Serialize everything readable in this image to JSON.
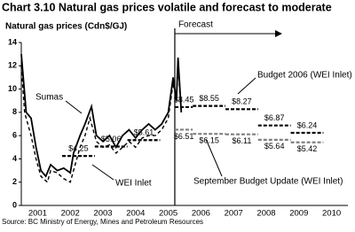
{
  "chart_data": {
    "type": "line",
    "title": "Chart 3.10 Natural gas prices volatile and forecast to moderate",
    "y_label": "Natural gas prices (Cdn$/GJ)",
    "forecast_label": "Forecast",
    "source": "Source:  BC Ministry of Energy, Mines and Petroleum Resources",
    "xlim": [
      2001,
      2011
    ],
    "xticks": [
      {
        "value": 2001.5,
        "label": "2001"
      },
      {
        "value": 2002.5,
        "label": "2002"
      },
      {
        "value": 2003.5,
        "label": "2003"
      },
      {
        "value": 2004.5,
        "label": "2004"
      },
      {
        "value": 2005.5,
        "label": "2005"
      },
      {
        "value": 2006.5,
        "label": "2006"
      },
      {
        "value": 2007.5,
        "label": "2007"
      },
      {
        "value": 2008.5,
        "label": "2008"
      },
      {
        "value": 2009.5,
        "label": "2009"
      },
      {
        "value": 2010.5,
        "label": "2010"
      }
    ],
    "ylim": [
      0,
      14
    ],
    "yticks": [
      0,
      2,
      4,
      6,
      8,
      10,
      12,
      14
    ],
    "series": [
      {
        "name": "Sumas",
        "color": "#000000",
        "style": "solid",
        "kind": "line",
        "x": [
          2001.0,
          2001.15,
          2001.3,
          2001.45,
          2001.6,
          2001.75,
          2001.9,
          2002.1,
          2002.3,
          2002.5,
          2002.6,
          2002.8,
          2002.95,
          2003.15,
          2003.3,
          2003.5,
          2003.7,
          2003.9,
          2004.1,
          2004.3,
          2004.5,
          2004.7,
          2004.9,
          2005.1,
          2005.3,
          2005.5,
          2005.65,
          2005.75,
          2005.8,
          2005.9
        ],
        "values": [
          13,
          8,
          7.5,
          5,
          3,
          2.5,
          3.5,
          3,
          3.2,
          2.8,
          4.5,
          6,
          7,
          8.5,
          6,
          5.5,
          6,
          5,
          6,
          6.5,
          5.8,
          6.5,
          7,
          6.5,
          7,
          8,
          11,
          9,
          12.7,
          8
        ]
      },
      {
        "name": "WEI Inlet",
        "color": "#000000",
        "style": "dashed",
        "kind": "line",
        "x": [
          2001.0,
          2001.1,
          2001.3,
          2001.45,
          2001.6,
          2001.8,
          2001.9,
          2002.1,
          2002.3,
          2002.5,
          2002.65,
          2002.8,
          2002.95,
          2003.1,
          2003.3,
          2003.5,
          2003.7,
          2003.9,
          2004.1,
          2004.3,
          2004.5,
          2004.7,
          2004.9,
          2005.1,
          2005.3,
          2005.5,
          2005.65,
          2005.75,
          2005.8,
          2005.9
        ],
        "values": [
          12,
          8,
          6,
          4,
          2.5,
          2,
          3,
          2.8,
          2.3,
          2,
          3.5,
          5,
          6,
          7.5,
          5.5,
          5,
          5.2,
          4.5,
          5,
          5.5,
          5,
          5.8,
          6,
          6,
          6.5,
          7.5,
          10.5,
          9,
          12,
          8
        ]
      },
      {
        "name": "Budget 2006 (WEI Inlet)",
        "color": "#000000",
        "style": "dashed",
        "kind": "step",
        "x": [
          2002.25,
          2003.25,
          2004.25,
          2005.7,
          2006.25,
          2007.25,
          2008.25,
          2009.25
        ],
        "values": [
          4.25,
          5.06,
          5.61,
          8.45,
          8.55,
          8.27,
          6.87,
          6.24
        ],
        "value_labels": [
          "$4.25",
          "$5.06",
          "$5.61",
          "$8.45",
          "$8.55",
          "$8.27",
          "$6.87",
          "$6.24"
        ]
      },
      {
        "name": "September Budget Update (WEI Inlet)",
        "color": "#808080",
        "style": "dashed",
        "kind": "step",
        "x": [
          2005.7,
          2006.25,
          2007.25,
          2008.25,
          2009.25
        ],
        "values": [
          6.51,
          6.15,
          6.11,
          5.64,
          5.42
        ],
        "value_labels": [
          "$6.51",
          "$6.15",
          "$6.11",
          "$5.64",
          "$5.42"
        ]
      }
    ]
  }
}
